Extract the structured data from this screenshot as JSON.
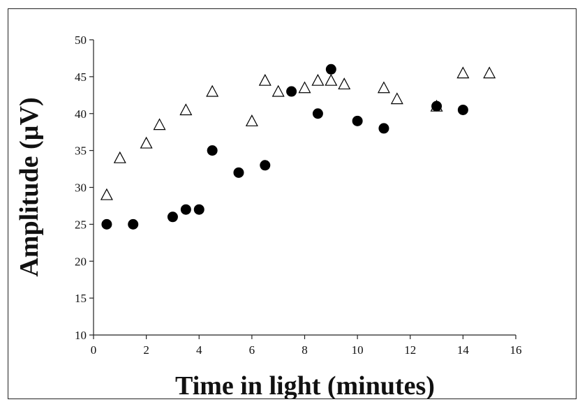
{
  "chart_data": {
    "type": "scatter",
    "xlabel": "Time in light (minutes)",
    "ylabel": "Amplitude (µV)",
    "xlim": [
      0,
      16
    ],
    "ylim": [
      10,
      50
    ],
    "xticks": [
      "0",
      "2",
      "4",
      "6",
      "8",
      "10",
      "12",
      "14",
      "16"
    ],
    "yticks": [
      "10",
      "15",
      "20",
      "25",
      "30",
      "35",
      "40",
      "45",
      "50"
    ],
    "grid": false,
    "legend": "none",
    "series": [
      {
        "marker": "filled-circle",
        "color": "#000000",
        "points": [
          [
            0.5,
            25
          ],
          [
            1.5,
            25
          ],
          [
            3.0,
            26
          ],
          [
            3.5,
            27
          ],
          [
            4.0,
            27
          ],
          [
            4.5,
            35
          ],
          [
            5.5,
            32
          ],
          [
            6.5,
            33
          ],
          [
            7.5,
            43
          ],
          [
            8.5,
            40
          ],
          [
            9.0,
            46
          ],
          [
            10.0,
            39
          ],
          [
            11.0,
            38
          ],
          [
            13.0,
            41
          ],
          [
            14.0,
            40.5
          ]
        ]
      },
      {
        "marker": "open-triangle",
        "color": "#000000",
        "points": [
          [
            0.5,
            29
          ],
          [
            1.0,
            34
          ],
          [
            2.0,
            36
          ],
          [
            2.5,
            38.5
          ],
          [
            3.5,
            40.5
          ],
          [
            4.5,
            43
          ],
          [
            6.0,
            39
          ],
          [
            6.5,
            44.5
          ],
          [
            7.0,
            43
          ],
          [
            8.0,
            43.5
          ],
          [
            8.5,
            44.5
          ],
          [
            9.0,
            44.5
          ],
          [
            9.5,
            44
          ],
          [
            11.0,
            43.5
          ],
          [
            11.5,
            42
          ],
          [
            13.0,
            41
          ],
          [
            14.0,
            45.5
          ],
          [
            15.0,
            45.5
          ]
        ]
      }
    ]
  }
}
